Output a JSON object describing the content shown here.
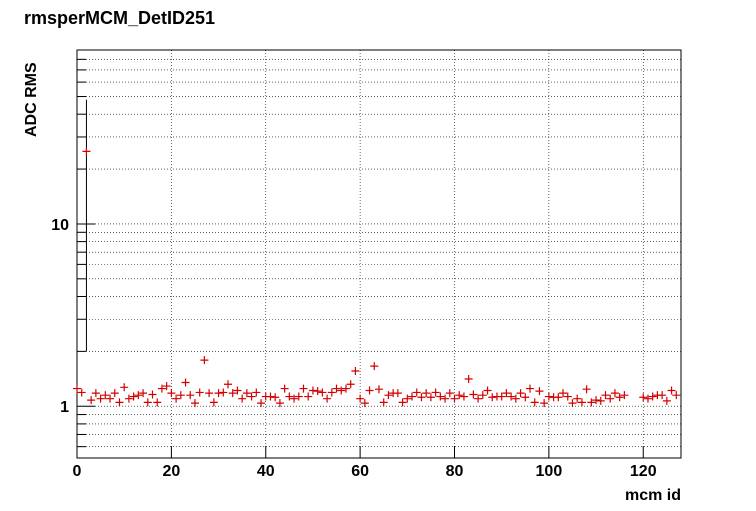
{
  "chart_data": {
    "type": "scatter",
    "title": "rmsperMCM_DetID251",
    "x_label": "mcm id",
    "y_label": "ADC RMS",
    "log_y": true,
    "grid": true,
    "xlim": [
      0,
      128
    ],
    "ylim": [
      0.52,
      90
    ],
    "xticks": [
      0,
      20,
      40,
      60,
      80,
      100,
      120
    ],
    "yticks": [
      1,
      10
    ],
    "yminorticks": [
      0.6,
      0.7,
      0.8,
      0.9,
      2,
      3,
      4,
      5,
      6,
      7,
      8,
      9,
      20,
      30,
      40,
      50,
      60,
      70,
      80,
      90
    ],
    "x": [
      0,
      1,
      2,
      3,
      4,
      5,
      6,
      7,
      8,
      9,
      10,
      11,
      12,
      13,
      14,
      15,
      16,
      17,
      18,
      19,
      20,
      21,
      22,
      23,
      24,
      25,
      26,
      27,
      28,
      29,
      30,
      31,
      32,
      33,
      34,
      35,
      36,
      37,
      38,
      39,
      40,
      41,
      42,
      43,
      44,
      45,
      46,
      47,
      48,
      49,
      50,
      51,
      52,
      53,
      54,
      55,
      56,
      57,
      58,
      59,
      60,
      61,
      62,
      63,
      64,
      65,
      66,
      67,
      68,
      69,
      70,
      71,
      72,
      73,
      74,
      75,
      76,
      77,
      78,
      79,
      80,
      81,
      82,
      83,
      84,
      85,
      86,
      87,
      88,
      89,
      90,
      91,
      92,
      93,
      94,
      95,
      96,
      97,
      98,
      99,
      100,
      101,
      102,
      103,
      104,
      105,
      106,
      107,
      108,
      109,
      110,
      111,
      112,
      113,
      114,
      115,
      116,
      120,
      121,
      122,
      123,
      124,
      125,
      126,
      127
    ],
    "series": [
      {
        "color": "#d40000",
        "values": [
          1.25,
          1.19,
          25,
          1.08,
          1.18,
          1.1,
          1.15,
          1.1,
          1.18,
          1.05,
          1.27,
          1.1,
          1.13,
          1.15,
          1.18,
          1.05,
          1.16,
          1.05,
          1.25,
          1.29,
          1.18,
          1.1,
          1.15,
          1.35,
          1.15,
          1.04,
          1.19,
          1.79,
          1.18,
          1.05,
          1.18,
          1.19,
          1.32,
          1.18,
          1.22,
          1.1,
          1.18,
          1.13,
          1.19,
          1.04,
          1.13,
          1.13,
          1.12,
          1.04,
          1.25,
          1.13,
          1.1,
          1.13,
          1.25,
          1.13,
          1.22,
          1.21,
          1.19,
          1.1,
          1.19,
          1.25,
          1.22,
          1.25,
          1.32,
          1.56,
          1.1,
          1.04,
          1.22,
          1.66,
          1.24,
          1.05,
          1.15,
          1.18,
          1.18,
          1.05,
          1.1,
          1.13,
          1.19,
          1.12,
          1.18,
          1.12,
          1.19,
          1.13,
          1.1,
          1.18,
          1.1,
          1.15,
          1.13,
          1.41,
          1.16,
          1.1,
          1.15,
          1.22,
          1.12,
          1.13,
          1.13,
          1.18,
          1.13,
          1.1,
          1.18,
          1.12,
          1.25,
          1.05,
          1.21,
          1.04,
          1.13,
          1.12,
          1.12,
          1.18,
          1.13,
          1.04,
          1.1,
          1.05,
          1.24,
          1.05,
          1.08,
          1.07,
          1.15,
          1.1,
          1.18,
          1.12,
          1.15,
          1.12,
          1.1,
          1.13,
          1.15,
          1.15,
          1.07,
          1.22,
          1.15
        ],
        "errors": [
          null,
          null,
          23,
          null,
          null,
          null,
          null,
          null,
          null,
          null,
          null,
          null,
          null,
          null,
          null,
          null,
          null,
          null,
          null,
          null,
          null,
          null,
          null,
          null,
          null,
          null,
          null,
          null,
          null,
          null,
          null,
          null,
          null,
          null,
          null,
          null,
          null,
          null,
          null,
          null,
          null,
          null,
          null,
          null,
          null,
          null,
          null,
          null,
          null,
          null,
          null,
          null,
          null,
          null,
          null,
          null,
          null,
          null,
          null,
          null,
          null,
          null,
          null,
          null,
          null,
          null,
          null,
          null,
          null,
          null,
          null,
          null,
          null,
          null,
          null,
          null,
          null,
          null,
          null,
          null,
          null,
          null,
          null,
          null,
          null,
          null,
          null,
          null,
          null,
          null,
          null,
          null,
          null,
          null,
          null,
          null,
          null,
          null,
          null,
          null,
          null,
          null,
          null,
          null,
          null,
          null,
          null,
          null,
          null,
          null,
          null,
          null,
          null,
          null,
          null,
          null,
          null,
          null,
          null,
          null,
          null,
          null,
          null,
          null,
          null
        ]
      }
    ]
  }
}
